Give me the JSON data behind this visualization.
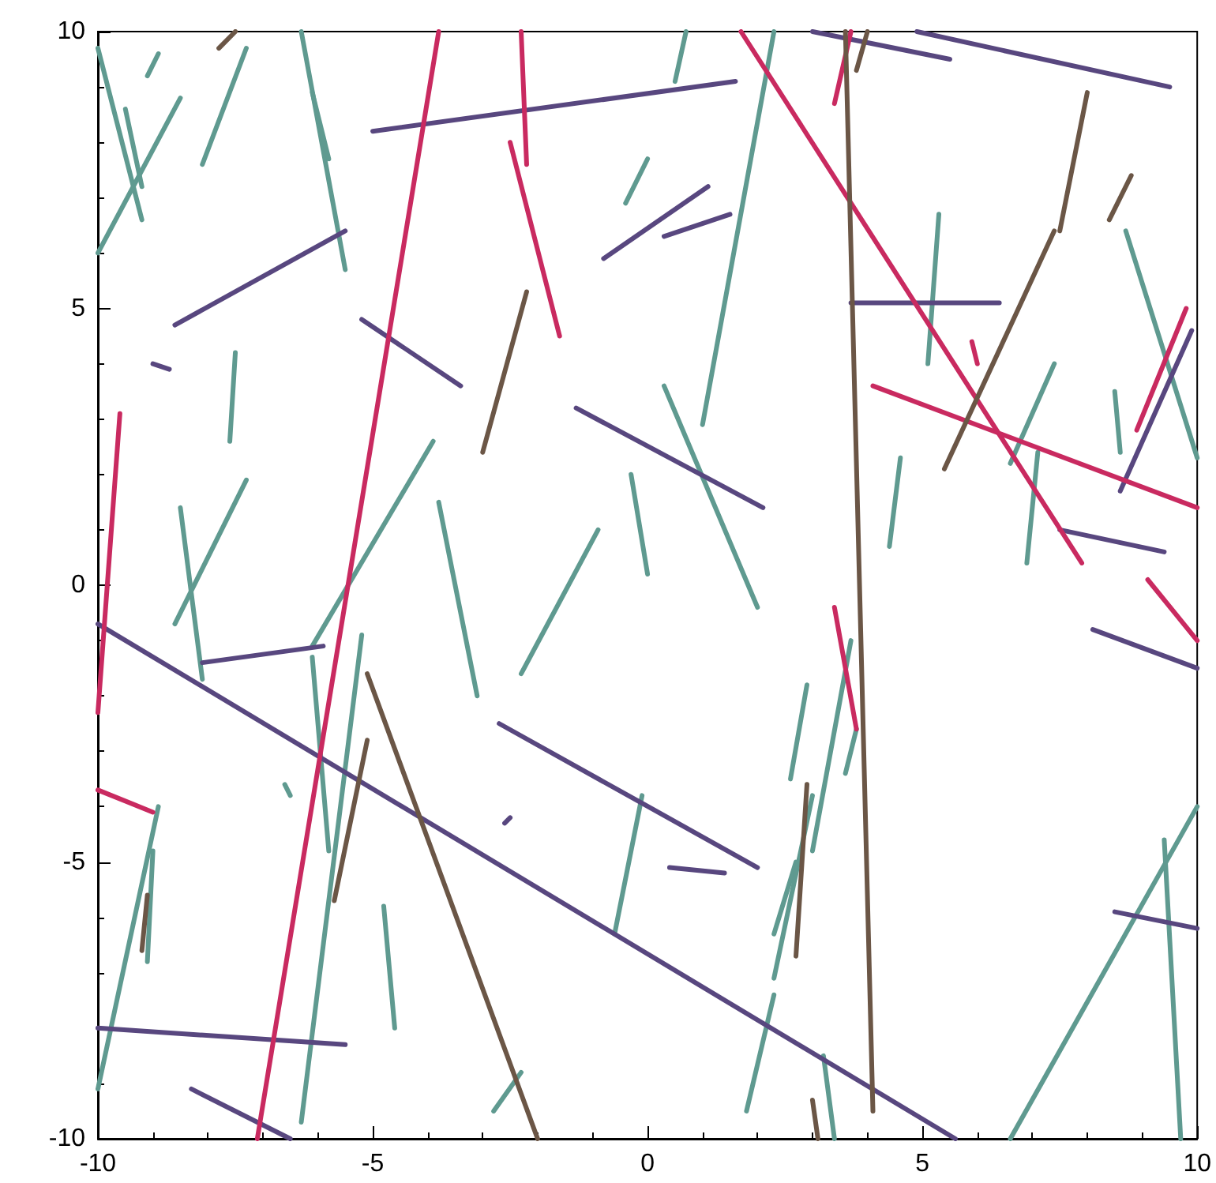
{
  "chart_data": {
    "type": "line",
    "xlim": [
      -10,
      10
    ],
    "ylim": [
      -10,
      10
    ],
    "xticks": [
      -10,
      -5,
      0,
      5,
      10
    ],
    "yticks": [
      -10,
      -5,
      0,
      5,
      10
    ],
    "grid": false,
    "marker": "none",
    "line_style": "solid",
    "series": [
      {
        "color": "#5f9a90",
        "x": [
          -10,
          -9.2
        ],
        "values": [
          9.7,
          6.6
        ]
      },
      {
        "color": "#5f9a90",
        "x": [
          -10,
          -8.5
        ],
        "values": [
          6,
          8.8
        ]
      },
      {
        "color": "#5f9a90",
        "x": [
          -9.5,
          -9.2
        ],
        "values": [
          8.6,
          7.2
        ]
      },
      {
        "color": "#5f9a90",
        "x": [
          -9.1,
          -8.9
        ],
        "values": [
          9.2,
          9.6
        ]
      },
      {
        "color": "#5f9a90",
        "x": [
          -8.1,
          -7.3
        ],
        "values": [
          7.6,
          9.7
        ]
      },
      {
        "color": "#5f9a90",
        "x": [
          -6.3,
          -5.5
        ],
        "values": [
          10,
          5.7
        ]
      },
      {
        "color": "#5f9a90",
        "x": [
          -6.1,
          -5.8
        ],
        "values": [
          8.9,
          7.7
        ]
      },
      {
        "color": "#5f9a90",
        "x": [
          -7.6,
          -7.5
        ],
        "values": [
          2.6,
          4.2
        ]
      },
      {
        "color": "#5f9a90",
        "x": [
          -8.5,
          -8.1
        ],
        "values": [
          1.4,
          -1.7
        ]
      },
      {
        "color": "#5f9a90",
        "x": [
          -8.6,
          -7.3
        ],
        "values": [
          -0.7,
          1.9
        ]
      },
      {
        "color": "#5f9a90",
        "x": [
          -6.1,
          -3.9
        ],
        "values": [
          -1.1,
          2.6
        ]
      },
      {
        "color": "#5f9a90",
        "x": [
          -3.8,
          -3.1
        ],
        "values": [
          1.5,
          -2
        ]
      },
      {
        "color": "#5f9a90",
        "x": [
          -2.3,
          -0.9
        ],
        "values": [
          -1.6,
          1
        ]
      },
      {
        "color": "#5f9a90",
        "x": [
          -0.3,
          0
        ],
        "values": [
          2,
          0.2
        ]
      },
      {
        "color": "#5f9a90",
        "x": [
          -0.4,
          0
        ],
        "values": [
          6.9,
          7.7
        ]
      },
      {
        "color": "#5f9a90",
        "x": [
          0.5,
          0.7
        ],
        "values": [
          9.1,
          10
        ]
      },
      {
        "color": "#5f9a90",
        "x": [
          1,
          2.3
        ],
        "values": [
          2.9,
          10
        ]
      },
      {
        "color": "#5f9a90",
        "x": [
          0.3,
          2
        ],
        "values": [
          3.6,
          -0.4
        ]
      },
      {
        "color": "#5f9a90",
        "x": [
          2.6,
          2.9
        ],
        "values": [
          -3.5,
          -1.8
        ]
      },
      {
        "color": "#5f9a90",
        "x": [
          2.3,
          2.7
        ],
        "values": [
          -6.3,
          -5
        ]
      },
      {
        "color": "#5f9a90",
        "x": [
          3,
          3.7
        ],
        "values": [
          -4.8,
          -1
        ]
      },
      {
        "color": "#5f9a90",
        "x": [
          3.6,
          3.8
        ],
        "values": [
          -3.4,
          -2.6
        ]
      },
      {
        "color": "#5f9a90",
        "x": [
          2.3,
          3
        ],
        "values": [
          -7.1,
          -3.8
        ]
      },
      {
        "color": "#5f9a90",
        "x": [
          1.8,
          2.3
        ],
        "values": [
          -9.5,
          -7.4
        ]
      },
      {
        "color": "#5f9a90",
        "x": [
          -0.6,
          -0.1
        ],
        "values": [
          -6.3,
          -3.8
        ]
      },
      {
        "color": "#5f9a90",
        "x": [
          3.2,
          3.4
        ],
        "values": [
          -8.5,
          -10
        ]
      },
      {
        "color": "#5f9a90",
        "x": [
          4.4,
          4.6
        ],
        "values": [
          0.7,
          2.3
        ]
      },
      {
        "color": "#5f9a90",
        "x": [
          5.1,
          5.3
        ],
        "values": [
          4,
          6.7
        ]
      },
      {
        "color": "#5f9a90",
        "x": [
          6.6,
          7.4
        ],
        "values": [
          2.2,
          4
        ]
      },
      {
        "color": "#5f9a90",
        "x": [
          6.9,
          7.1
        ],
        "values": [
          0.4,
          2.4
        ]
      },
      {
        "color": "#5f9a90",
        "x": [
          8.7,
          10
        ],
        "values": [
          6.4,
          2.3
        ]
      },
      {
        "color": "#5f9a90",
        "x": [
          8.5,
          8.6
        ],
        "values": [
          3.5,
          2.4
        ]
      },
      {
        "color": "#5f9a90",
        "x": [
          6.6,
          10
        ],
        "values": [
          -10,
          -4
        ]
      },
      {
        "color": "#5f9a90",
        "x": [
          9.4,
          9.7
        ],
        "values": [
          -4.6,
          -10
        ]
      },
      {
        "color": "#5f9a90",
        "x": [
          -6.6,
          -6.5
        ],
        "values": [
          -3.6,
          -3.8
        ]
      },
      {
        "color": "#5f9a90",
        "x": [
          -6.1,
          -5.8
        ],
        "values": [
          -1.3,
          -4.8
        ]
      },
      {
        "color": "#5f9a90",
        "x": [
          -6.3,
          -5.2
        ],
        "values": [
          -9.7,
          -0.9
        ]
      },
      {
        "color": "#5f9a90",
        "x": [
          -4.8,
          -4.6
        ],
        "values": [
          -5.8,
          -8
        ]
      },
      {
        "color": "#5f9a90",
        "x": [
          -10,
          -8.9
        ],
        "values": [
          -9.1,
          -4
        ]
      },
      {
        "color": "#5f9a90",
        "x": [
          -9.1,
          -9
        ],
        "values": [
          -6.8,
          -4.8
        ]
      },
      {
        "color": "#5f9a90",
        "x": [
          -2.8,
          -2.3
        ],
        "values": [
          -9.5,
          -8.8
        ]
      },
      {
        "color": "#58477f",
        "x": [
          -10,
          5.6
        ],
        "values": [
          -0.7,
          -10
        ]
      },
      {
        "color": "#58477f",
        "x": [
          -5,
          1.6
        ],
        "values": [
          8.2,
          9.1
        ]
      },
      {
        "color": "#58477f",
        "x": [
          3,
          5.5
        ],
        "values": [
          10,
          9.5
        ]
      },
      {
        "color": "#58477f",
        "x": [
          4.9,
          9.5
        ],
        "values": [
          10,
          9
        ]
      },
      {
        "color": "#58477f",
        "x": [
          -8.6,
          -5.5
        ],
        "values": [
          4.7,
          6.4
        ]
      },
      {
        "color": "#58477f",
        "x": [
          -0.8,
          1.1
        ],
        "values": [
          5.9,
          7.2
        ]
      },
      {
        "color": "#58477f",
        "x": [
          0.3,
          1.5
        ],
        "values": [
          6.3,
          6.7
        ]
      },
      {
        "color": "#58477f",
        "x": [
          -5.2,
          -3.4
        ],
        "values": [
          4.8,
          3.6
        ]
      },
      {
        "color": "#58477f",
        "x": [
          -1.3,
          2.1
        ],
        "values": [
          3.2,
          1.4
        ]
      },
      {
        "color": "#58477f",
        "x": [
          3.7,
          6.4
        ],
        "values": [
          5.1,
          5.1
        ]
      },
      {
        "color": "#58477f",
        "x": [
          -9,
          -8.7
        ],
        "values": [
          4,
          3.9
        ]
      },
      {
        "color": "#58477f",
        "x": [
          -8.1,
          -5.9
        ],
        "values": [
          -1.4,
          -1.1
        ]
      },
      {
        "color": "#58477f",
        "x": [
          -2.7,
          2
        ],
        "values": [
          -2.5,
          -5.1
        ]
      },
      {
        "color": "#58477f",
        "x": [
          -2.6,
          -2.5
        ],
        "values": [
          -4.3,
          -4.2
        ]
      },
      {
        "color": "#58477f",
        "x": [
          0.4,
          1.4
        ],
        "values": [
          -5.1,
          -5.2
        ]
      },
      {
        "color": "#58477f",
        "x": [
          -10,
          -5.5
        ],
        "values": [
          -8,
          -8.3
        ]
      },
      {
        "color": "#58477f",
        "x": [
          -8.3,
          -6.5
        ],
        "values": [
          -9.1,
          -10
        ]
      },
      {
        "color": "#58477f",
        "x": [
          7.5,
          9.4
        ],
        "values": [
          1,
          0.6
        ]
      },
      {
        "color": "#58477f",
        "x": [
          8.1,
          10
        ],
        "values": [
          -0.8,
          -1.5
        ]
      },
      {
        "color": "#58477f",
        "x": [
          8.5,
          10
        ],
        "values": [
          -5.9,
          -6.2
        ]
      },
      {
        "color": "#58477f",
        "x": [
          8.6,
          9.9
        ],
        "values": [
          1.7,
          4.6
        ]
      },
      {
        "color": "#c92a60",
        "x": [
          -7.1,
          -3.8
        ],
        "values": [
          -10,
          10
        ]
      },
      {
        "color": "#c92a60",
        "x": [
          -2.3,
          -2.2
        ],
        "values": [
          10,
          7.6
        ]
      },
      {
        "color": "#c92a60",
        "x": [
          -2.5,
          -1.6
        ],
        "values": [
          8,
          4.5
        ]
      },
      {
        "color": "#c92a60",
        "x": [
          1.7,
          7.9
        ],
        "values": [
          10,
          0.4
        ]
      },
      {
        "color": "#c92a60",
        "x": [
          4.1,
          10
        ],
        "values": [
          3.6,
          1.4
        ]
      },
      {
        "color": "#c92a60",
        "x": [
          3.4,
          3.7
        ],
        "values": [
          8.7,
          10
        ]
      },
      {
        "color": "#c92a60",
        "x": [
          3.4,
          3.8
        ],
        "values": [
          -0.4,
          -2.6
        ]
      },
      {
        "color": "#c92a60",
        "x": [
          5.9,
          6
        ],
        "values": [
          4.4,
          4
        ]
      },
      {
        "color": "#c92a60",
        "x": [
          -10,
          -9.6
        ],
        "values": [
          -2.3,
          3.1
        ]
      },
      {
        "color": "#c92a60",
        "x": [
          -10,
          -9
        ],
        "values": [
          -3.7,
          -4.1
        ]
      },
      {
        "color": "#c92a60",
        "x": [
          8.9,
          9.8
        ],
        "values": [
          2.8,
          5
        ]
      },
      {
        "color": "#c92a60",
        "x": [
          9.1,
          10
        ],
        "values": [
          0.1,
          -1
        ]
      },
      {
        "color": "#6b5646",
        "x": [
          -7.8,
          -7.5
        ],
        "values": [
          9.7,
          10
        ]
      },
      {
        "color": "#6b5646",
        "x": [
          -3,
          -2.2
        ],
        "values": [
          2.4,
          5.3
        ]
      },
      {
        "color": "#6b5646",
        "x": [
          -5.1,
          -2
        ],
        "values": [
          -1.6,
          -10
        ]
      },
      {
        "color": "#6b5646",
        "x": [
          -5.7,
          -5.1
        ],
        "values": [
          -5.7,
          -2.8
        ]
      },
      {
        "color": "#6b5646",
        "x": [
          3.6,
          4.1
        ],
        "values": [
          10,
          -9.5
        ]
      },
      {
        "color": "#6b5646",
        "x": [
          3.8,
          4
        ],
        "values": [
          9.3,
          10
        ]
      },
      {
        "color": "#6b5646",
        "x": [
          5.4,
          7.4
        ],
        "values": [
          2.1,
          6.4
        ]
      },
      {
        "color": "#6b5646",
        "x": [
          7.5,
          8
        ],
        "values": [
          6.4,
          8.9
        ]
      },
      {
        "color": "#6b5646",
        "x": [
          8.4,
          8.8
        ],
        "values": [
          6.6,
          7.4
        ]
      },
      {
        "color": "#6b5646",
        "x": [
          2.7,
          2.9
        ],
        "values": [
          -6.7,
          -3.6
        ]
      },
      {
        "color": "#6b5646",
        "x": [
          -9.2,
          -9.1
        ],
        "values": [
          -6.6,
          -5.6
        ]
      },
      {
        "color": "#6b5646",
        "x": [
          3,
          3.1
        ],
        "values": [
          -9.3,
          -10
        ]
      }
    ]
  }
}
